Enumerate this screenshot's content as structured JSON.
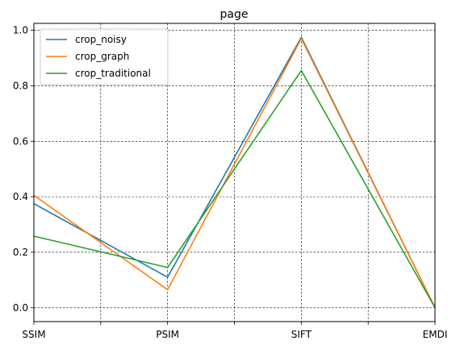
{
  "chart_data": {
    "type": "line",
    "title": "page",
    "categories": [
      "SSIM",
      "PSIM",
      "SIFT",
      "EMDI"
    ],
    "minor_ticks": true,
    "ylim": [
      -0.05,
      1.025
    ],
    "yticks": [
      0.0,
      0.2,
      0.4,
      0.6,
      0.8,
      1.0
    ],
    "ytick_labels": [
      "0.0",
      "0.2",
      "0.4",
      "0.6",
      "0.8",
      "1.0"
    ],
    "grid": true,
    "legend_position": "top-left",
    "series": [
      {
        "name": "crop_noisy",
        "color": "#1f77b4",
        "values": [
          0.375,
          0.11,
          0.975,
          0.0
        ]
      },
      {
        "name": "crop_graph",
        "color": "#ff7f0e",
        "values": [
          0.405,
          0.065,
          0.97,
          0.0
        ]
      },
      {
        "name": "crop_traditional",
        "color": "#2ca02c",
        "values": [
          0.258,
          0.145,
          0.855,
          0.0
        ]
      }
    ]
  }
}
